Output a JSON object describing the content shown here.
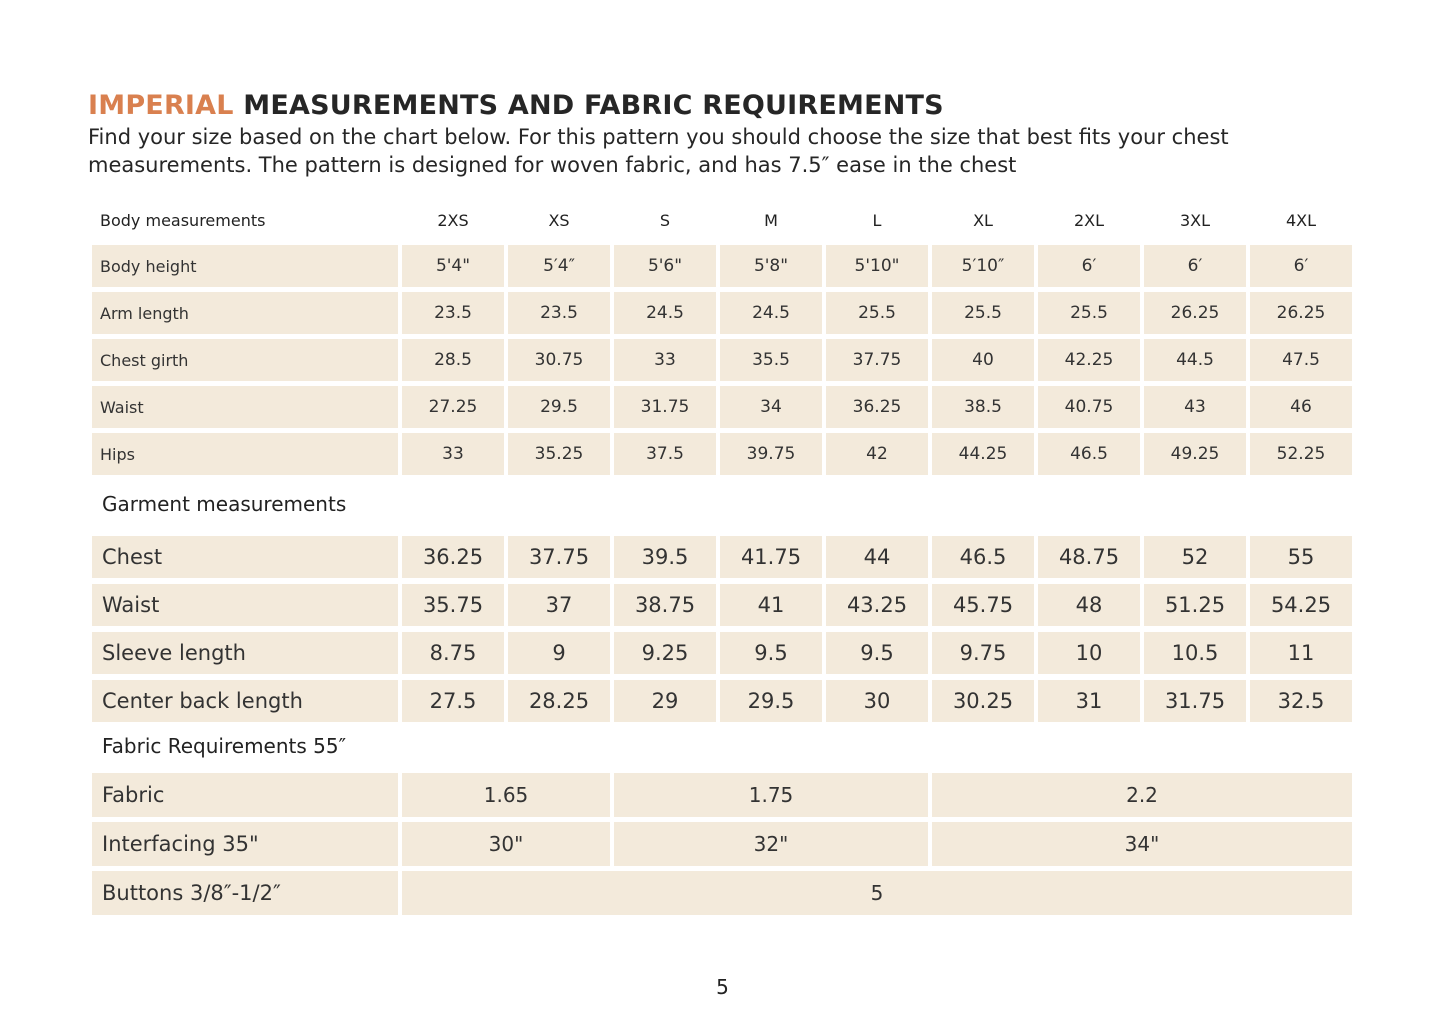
{
  "title": {
    "accent": "IMPERIAL",
    "rest": " MEASUREMENTS AND FABRIC REQUIREMENTS"
  },
  "intro": "Find your size based on the chart below. For this pattern you should choose the size that best fits your chest measurements. The pattern is designed for woven fabric, and has 7.5″ ease in the chest",
  "colors": {
    "accent": "#d9804f",
    "cell_bg": "#f3eadb"
  },
  "body": {
    "header": "Body measurements",
    "sizes": [
      "2XS",
      "XS",
      "S",
      "M",
      "L",
      "XL",
      "2XL",
      "3XL",
      "4XL"
    ],
    "rows": [
      {
        "label": "Body height",
        "values": [
          "5'4\"",
          "5′4″",
          "5'6\"",
          "5'8\"",
          "5'10\"",
          "5′10″",
          "6′",
          "6′",
          "6′"
        ]
      },
      {
        "label": "Arm length",
        "values": [
          "23.5",
          "23.5",
          "24.5",
          "24.5",
          "25.5",
          "25.5",
          "25.5",
          "26.25",
          "26.25"
        ]
      },
      {
        "label": "Chest girth",
        "values": [
          "28.5",
          "30.75",
          "33",
          "35.5",
          "37.75",
          "40",
          "42.25",
          "44.5",
          "47.5"
        ]
      },
      {
        "label": "Waist",
        "values": [
          "27.25",
          "29.5",
          "31.75",
          "34",
          "36.25",
          "38.5",
          "40.75",
          "43",
          "46"
        ]
      },
      {
        "label": "Hips",
        "values": [
          "33",
          "35.25",
          "37.5",
          "39.75",
          "42",
          "44.25",
          "46.5",
          "49.25",
          "52.25"
        ]
      }
    ]
  },
  "garment": {
    "title": "Garment measurements",
    "rows": [
      {
        "label": "Chest",
        "values": [
          "36.25",
          "37.75",
          "39.5",
          "41.75",
          "44",
          "46.5",
          "48.75",
          "52",
          "55"
        ]
      },
      {
        "label": "Waist",
        "values": [
          "35.75",
          "37",
          "38.75",
          "41",
          "43.25",
          "45.75",
          "48",
          "51.25",
          "54.25"
        ]
      },
      {
        "label": "Sleeve length",
        "values": [
          "8.75",
          "9",
          "9.25",
          "9.5",
          "9.5",
          "9.75",
          "10",
          "10.5",
          "11"
        ]
      },
      {
        "label": "Center back length",
        "values": [
          "27.5",
          "28.25",
          "29",
          "29.5",
          "30",
          "30.25",
          "31",
          "31.75",
          "32.5"
        ]
      }
    ]
  },
  "fabric": {
    "title": "Fabric Requirements 55″",
    "rows": [
      {
        "label": "Fabric",
        "groups": [
          {
            "value": "1.65",
            "sizes": [
              "2XS",
              "XS"
            ]
          },
          {
            "value": "1.75",
            "sizes": [
              "S",
              "M",
              "L"
            ]
          },
          {
            "value": "2.2",
            "sizes": [
              "XL",
              "2XL",
              "3XL",
              "4XL"
            ]
          }
        ]
      },
      {
        "label": "Interfacing 35\"",
        "groups": [
          {
            "value": "30\"",
            "sizes": [
              "2XS",
              "XS"
            ]
          },
          {
            "value": "32\"",
            "sizes": [
              "S",
              "M",
              "L"
            ]
          },
          {
            "value": "34\"",
            "sizes": [
              "XL",
              "2XL",
              "3XL",
              "4XL"
            ]
          }
        ]
      },
      {
        "label": "Buttons 3/8″-1/2″",
        "groups": [
          {
            "value": "5",
            "sizes": [
              "2XS",
              "XS",
              "S",
              "M",
              "L",
              "XL",
              "2XL",
              "3XL",
              "4XL"
            ]
          }
        ]
      }
    ]
  },
  "page_number": "5"
}
